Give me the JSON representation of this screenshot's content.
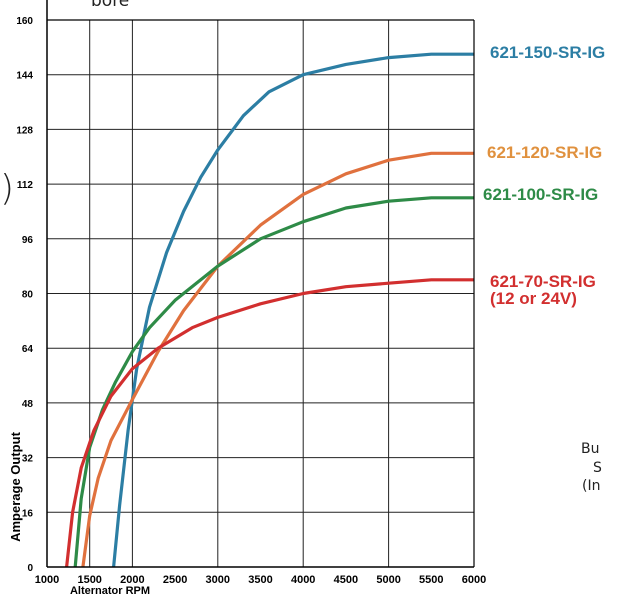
{
  "chart_data": {
    "type": "line",
    "xlabel": "Alternator RPM",
    "ylabel": "Amperage Output",
    "xticks": [
      1000,
      1500,
      2000,
      2500,
      3000,
      3500,
      4000,
      4500,
      5000,
      5500,
      6000
    ],
    "yticks": [
      0,
      16,
      32,
      48,
      64,
      80,
      96,
      112,
      128,
      144,
      160
    ],
    "xlim": [
      1000,
      6000
    ],
    "ylim": [
      0,
      160
    ],
    "grid": true,
    "series": [
      {
        "name": "621-150-SR-IG",
        "color": "#2c7ea4",
        "x": [
          1780,
          1850,
          1950,
          2050,
          2200,
          2400,
          2600,
          2800,
          3000,
          3300,
          3600,
          4000,
          4500,
          5000,
          5500,
          6000
        ],
        "y": [
          0,
          18,
          40,
          58,
          76,
          92,
          104,
          114,
          122,
          132,
          139,
          144,
          147,
          149,
          150,
          150
        ]
      },
      {
        "name": "621-120-SR-IG",
        "color": "#e0713e",
        "x": [
          1420,
          1500,
          1600,
          1750,
          2000,
          2300,
          2600,
          3000,
          3500,
          4000,
          4500,
          5000,
          5500,
          6000
        ],
        "y": [
          0,
          15,
          26,
          37,
          49,
          63,
          75,
          88,
          100,
          109,
          115,
          119,
          121,
          121
        ]
      },
      {
        "name": "621-100-SR-IG",
        "color": "#2e8b47",
        "x": [
          1330,
          1400,
          1500,
          1650,
          1800,
          2000,
          2200,
          2500,
          3000,
          3500,
          4000,
          4500,
          5000,
          5500,
          6000
        ],
        "y": [
          0,
          20,
          35,
          46,
          54,
          63,
          70,
          78,
          88,
          96,
          101,
          105,
          107,
          108,
          108
        ]
      },
      {
        "name": "621-70-SR-IG",
        "color": "#d22f2f",
        "x": [
          1230,
          1300,
          1400,
          1550,
          1750,
          2000,
          2300,
          2700,
          3000,
          3500,
          4000,
          4500,
          5000,
          5500,
          6000
        ],
        "y": [
          0,
          16,
          29,
          40,
          50,
          58,
          64,
          70,
          73,
          77,
          80,
          82,
          83,
          84,
          84
        ]
      }
    ]
  },
  "legend": {
    "l150": "621-150-SR-IG",
    "l120": "621-120-SR-IG",
    "l100": "621-100-SR-IG",
    "l70": "621-70-SR-IG",
    "l70b": "(12 or 24V)"
  },
  "fragments": {
    "top": "bore",
    "paren": ")",
    "bu": "Bu",
    "s": "S",
    "in": "(In"
  }
}
